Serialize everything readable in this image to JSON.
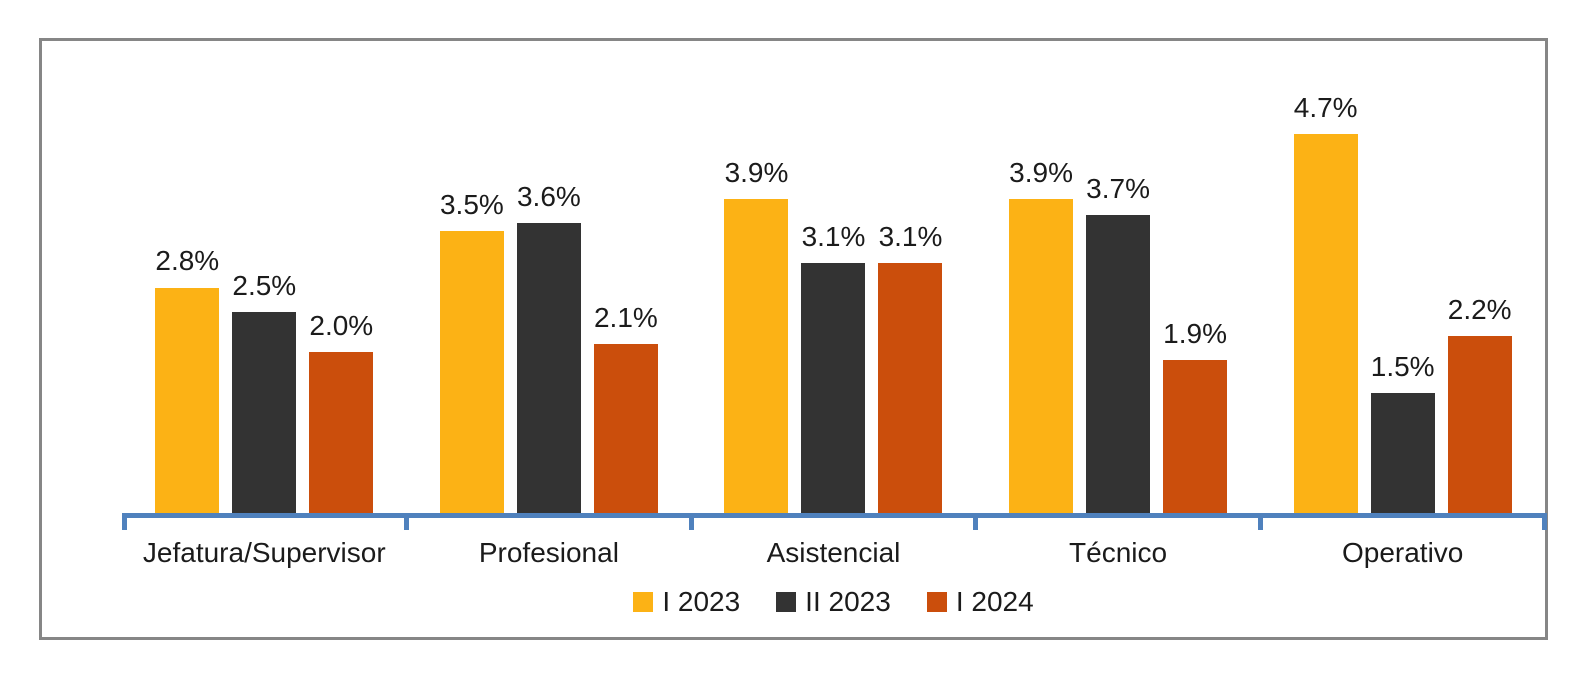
{
  "chart_data": {
    "type": "bar",
    "title": "",
    "xlabel": "",
    "ylabel": "",
    "categories": [
      "Jefatura/Supervisor",
      "Profesional",
      "Asistencial",
      "Técnico",
      "Operativo"
    ],
    "series": [
      {
        "name": "I 2023",
        "color": "#FCB215",
        "values": [
          2.8,
          3.5,
          3.9,
          3.9,
          4.7
        ],
        "labels": [
          "2.8%",
          "3.5%",
          "3.9%",
          "3.9%",
          "4.7%"
        ]
      },
      {
        "name": "II 2023",
        "color": "#333333",
        "values": [
          2.5,
          3.6,
          3.1,
          3.7,
          1.5
        ],
        "labels": [
          "2.5%",
          "3.6%",
          "3.1%",
          "3.7%",
          "1.5%"
        ]
      },
      {
        "name": "I 2024",
        "color": "#CB4E0C",
        "values": [
          2.0,
          2.1,
          3.1,
          1.9,
          2.2
        ],
        "labels": [
          "2.0%",
          "2.1%",
          "3.1%",
          "1.9%",
          "2.2%"
        ]
      }
    ],
    "ylim": [
      0,
      5.85
    ],
    "y_axis_visible": false,
    "gridlines": false,
    "data_labels_position": "outside_end",
    "legend_position": "bottom",
    "axis_color": "#4F81BD",
    "frame_border_color": "#868686",
    "text_color": "#1B1B1B",
    "background_color": "#FFFFFF"
  }
}
